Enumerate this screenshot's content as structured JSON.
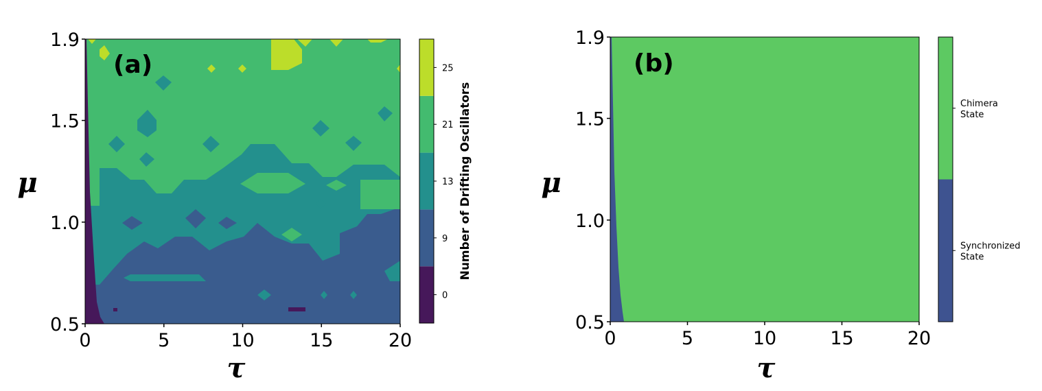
{
  "colors": {
    "level_0": "#46185a",
    "level_9": "#3a5c8e",
    "level_13": "#23908d",
    "level_21": "#43bb6f",
    "level_25": "#bcdd2a",
    "synchronized": "#3e5390",
    "chimera": "#5dc962"
  },
  "chart_data": [
    {
      "type": "heatmap",
      "panel_label": "(a)",
      "xlabel": "τ",
      "ylabel": "μ",
      "xlim": [
        0,
        20
      ],
      "ylim": [
        0.5,
        1.9
      ],
      "xticks": [
        "0",
        "5",
        "10",
        "15",
        "20"
      ],
      "yticks": [
        "0.5",
        "1.0",
        "1.5",
        "1.9"
      ],
      "colorbar": {
        "label": "Number of Drifting Oscillators",
        "ticks": [
          "0",
          "9",
          "13",
          "21",
          "25"
        ],
        "levels": [
          {
            "name": "0",
            "color": "#46185a"
          },
          {
            "name": "9",
            "color": "#3a5c8e"
          },
          {
            "name": "13",
            "color": "#23908d"
          },
          {
            "name": "21",
            "color": "#43bb6f"
          },
          {
            "name": "25",
            "color": "#bcdd2a"
          }
        ]
      },
      "regions": [
        {
          "level": "21",
          "description": "dominant value for μ above about 1.1"
        },
        {
          "level": "13",
          "description": "band for μ between about 0.75 and 1.1"
        },
        {
          "level": "9",
          "description": "lower band for μ below about 0.75"
        },
        {
          "level": "0",
          "description": "thin strip for τ below about 0.7"
        },
        {
          "level": "25",
          "description": "isolated patches near μ = 1.9"
        }
      ]
    },
    {
      "type": "heatmap",
      "panel_label": "(b)",
      "xlabel": "τ",
      "ylabel": "μ",
      "xlim": [
        0,
        20
      ],
      "ylim": [
        0.5,
        1.9
      ],
      "xticks": [
        "0",
        "5",
        "10",
        "15",
        "20"
      ],
      "yticks": [
        "0.5",
        "1.0",
        "1.5",
        "1.9"
      ],
      "colorbar": {
        "ticks": [
          "Chimera\nState",
          "Synchronized\nState"
        ],
        "levels": [
          {
            "name": "Synchronized State",
            "color": "#3e5390"
          },
          {
            "name": "Chimera State",
            "color": "#5dc962"
          }
        ]
      },
      "regions": [
        {
          "level": "Chimera State",
          "description": "everywhere except narrow strip at small τ"
        },
        {
          "level": "Synchronized State",
          "description": "τ below about 0.1 at μ = 1.9 widening to about 0.9 at μ = 0.5"
        }
      ]
    }
  ]
}
